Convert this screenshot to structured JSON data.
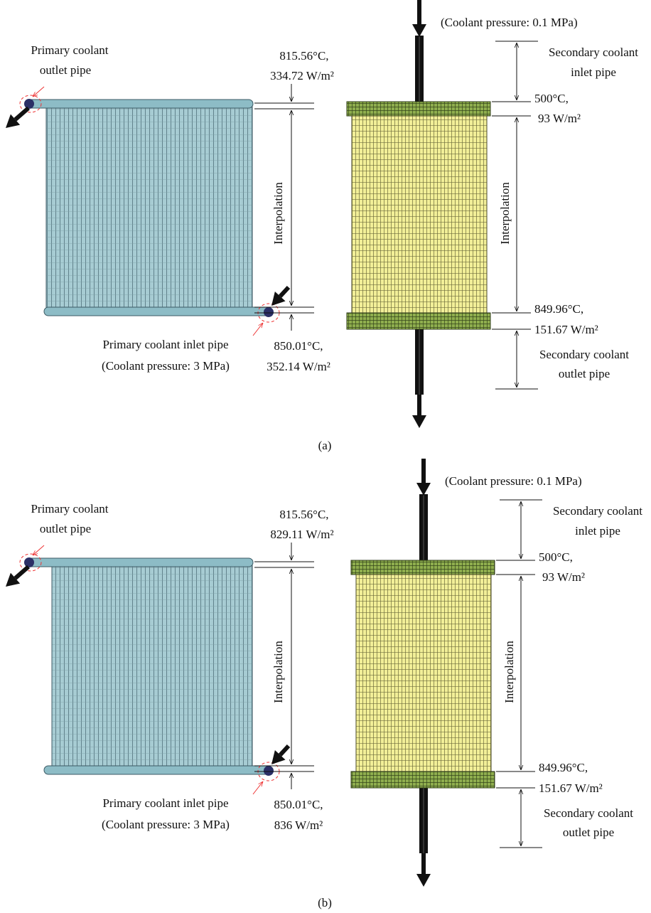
{
  "panels": [
    {
      "caption": "(a)",
      "primary_outlet": [
        "Primary coolant",
        "outlet pipe"
      ],
      "top_condition": [
        "815.56°C,",
        "334.72 W/m²"
      ],
      "left_interpolation": "Interpolation",
      "primary_inlet": [
        "Primary coolant inlet pipe",
        "(Coolant pressure: 3 MPa)"
      ],
      "bottom_condition": [
        "850.01°C,",
        "352.14 W/m²"
      ],
      "secondary_pressure": "(Coolant pressure: 0.1 MPa)",
      "secondary_inlet": [
        "Secondary coolant",
        "inlet pipe"
      ],
      "secondary_top_condition": [
        "500°C,",
        "93 W/m²"
      ],
      "right_interpolation": "Interpolation",
      "secondary_bottom_condition": [
        "849.96°C,",
        "151.67 W/m²"
      ],
      "secondary_outlet": [
        "Secondary coolant",
        "outlet pipe"
      ]
    },
    {
      "caption": "(b)",
      "primary_outlet": [
        "Primary coolant",
        "outlet pipe"
      ],
      "top_condition": [
        "815.56°C,",
        "829.11 W/m²"
      ],
      "left_interpolation": "Interpolation",
      "primary_inlet": [
        "Primary coolant inlet pipe",
        "(Coolant pressure: 3 MPa)"
      ],
      "bottom_condition": [
        "850.01°C,",
        "836 W/m²"
      ],
      "secondary_pressure": "(Coolant pressure: 0.1 MPa)",
      "secondary_inlet": [
        "Secondary coolant",
        "inlet pipe"
      ],
      "secondary_top_condition": [
        "500°C,",
        "93 W/m²"
      ],
      "right_interpolation": "Interpolation",
      "secondary_bottom_condition": [
        "849.96°C,",
        "151.67 W/m²"
      ],
      "secondary_outlet": [
        "Secondary coolant",
        "outlet pipe"
      ]
    }
  ]
}
